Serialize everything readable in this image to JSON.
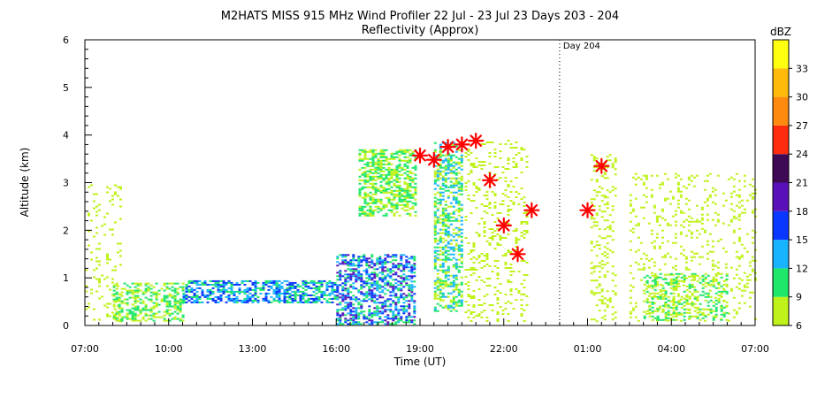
{
  "chart_data": {
    "type": "scatter",
    "title": "M2HATS MISS 915 MHz Wind Profiler  22 Jul - 23 Jul 23 Days 203 - 204",
    "subtitle": "Reflectivity (Approx)",
    "xlabel": "Time (UT)",
    "ylabel": "Altitude (km)",
    "x_ticks": [
      "07:00",
      "10:00",
      "13:00",
      "16:00",
      "19:00",
      "22:00",
      "01:00",
      "04:00",
      "07:00"
    ],
    "x_tick_hours": [
      0,
      3,
      6,
      9,
      12,
      15,
      18,
      21,
      24
    ],
    "xlim_hours": [
      0,
      24
    ],
    "y_ticks": [
      "0",
      "1",
      "2",
      "3",
      "4",
      "5",
      "6"
    ],
    "ylim": [
      0,
      6
    ],
    "day_marker": {
      "label": "Day 204",
      "hour": 17
    },
    "colorbar": {
      "title": "dBZ",
      "levels": [
        6,
        9,
        12,
        15,
        18,
        21,
        24,
        27,
        30,
        33
      ],
      "tick_labels": [
        "33",
        "30",
        "27",
        "24",
        "21",
        "18",
        "15",
        "12",
        "9",
        "6"
      ],
      "colors": [
        "#bff21a",
        "#1ee76a",
        "#18b4ff",
        "#0a37ff",
        "#5a10b8",
        "#3e0a55",
        "#ff2d0d",
        "#ff8a10",
        "#ffba0a",
        "#ffff10"
      ],
      "range": [
        6,
        36
      ]
    },
    "markers": {
      "symbol": "asterisk",
      "color": "#ff0000",
      "points": [
        {
          "x": 12.0,
          "y": 3.57
        },
        {
          "x": 12.5,
          "y": 3.48
        },
        {
          "x": 13.0,
          "y": 3.75
        },
        {
          "x": 13.5,
          "y": 3.8
        },
        {
          "x": 14.0,
          "y": 3.88
        },
        {
          "x": 14.5,
          "y": 3.05
        },
        {
          "x": 15.0,
          "y": 2.1
        },
        {
          "x": 15.5,
          "y": 1.5
        },
        {
          "x": 16.0,
          "y": 2.42
        },
        {
          "x": 18.0,
          "y": 2.42
        },
        {
          "x": 18.5,
          "y": 3.35
        }
      ]
    },
    "echo_regions": [
      {
        "x0": 0.0,
        "x1": 1.3,
        "y0": 0.05,
        "y1": 3.0,
        "density": 0.1,
        "dbz": [
          6,
          9
        ]
      },
      {
        "x0": 1.0,
        "x1": 3.5,
        "y0": 0.1,
        "y1": 0.9,
        "density": 0.45,
        "dbz": [
          6,
          12
        ]
      },
      {
        "x0": 3.5,
        "x1": 9.0,
        "y0": 0.5,
        "y1": 0.95,
        "density": 0.6,
        "dbz": [
          9,
          18
        ]
      },
      {
        "x0": 9.0,
        "x1": 11.8,
        "y0": 0.05,
        "y1": 1.5,
        "density": 0.55,
        "dbz": [
          9,
          20
        ]
      },
      {
        "x0": 9.8,
        "x1": 11.8,
        "y0": 2.3,
        "y1": 3.7,
        "density": 0.55,
        "dbz": [
          6,
          12
        ]
      },
      {
        "x0": 12.5,
        "x1": 13.5,
        "y0": 0.3,
        "y1": 3.85,
        "density": 0.5,
        "dbz": [
          6,
          15
        ]
      },
      {
        "x0": 13.6,
        "x1": 15.8,
        "y0": 0.1,
        "y1": 3.9,
        "density": 0.15,
        "dbz": [
          6,
          9
        ]
      },
      {
        "x0": 18.1,
        "x1": 19.0,
        "y0": 0.1,
        "y1": 3.6,
        "density": 0.2,
        "dbz": [
          6,
          9
        ]
      },
      {
        "x0": 19.5,
        "x1": 24.0,
        "y0": 0.1,
        "y1": 3.2,
        "density": 0.12,
        "dbz": [
          6,
          9
        ]
      },
      {
        "x0": 20.0,
        "x1": 23.0,
        "y0": 0.1,
        "y1": 1.1,
        "density": 0.35,
        "dbz": [
          6,
          12
        ]
      }
    ]
  }
}
